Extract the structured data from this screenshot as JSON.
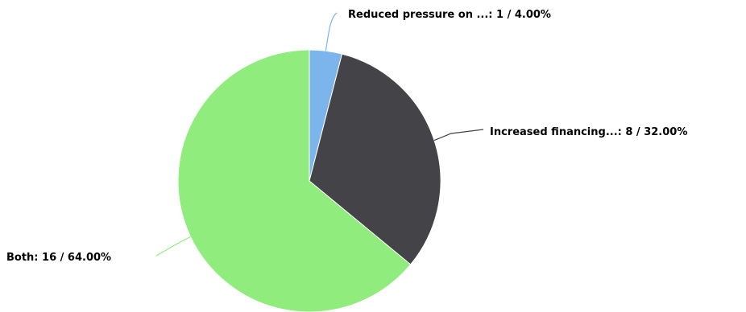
{
  "chart_data": {
    "type": "pie",
    "slices": [
      {
        "label": "Reduced pressure on ...: 1 / 4.00%",
        "value": 1,
        "percent": 4.0,
        "color": "#7cb5ec"
      },
      {
        "label": "Increased financing...: 8 / 32.00%",
        "value": 8,
        "percent": 32.0,
        "color": "#434348"
      },
      {
        "label": "Both: 16 / 64.00%",
        "value": 16,
        "percent": 64.0,
        "color": "#90ed7d"
      }
    ]
  }
}
